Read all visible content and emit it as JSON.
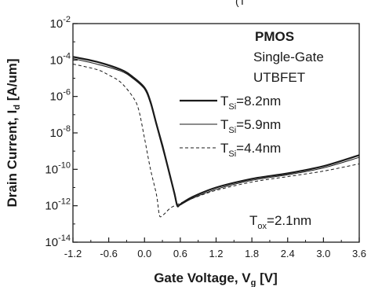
{
  "chart_data": {
    "type": "line",
    "title": "",
    "top_caption_fragment": "(T",
    "xlabel": "Gate Voltage, V",
    "xlabel_sub": "g",
    "xlabel_unit": " [V]",
    "ylabel": "Drain Current, I",
    "ylabel_sub": "d",
    "ylabel_unit": " [A/um]",
    "x_ticks": [
      "-1.2",
      "-0.6",
      "0.0",
      "0.6",
      "1.2",
      "1.8",
      "2.4",
      "3.0",
      "3.6"
    ],
    "y_ticks": [
      {
        "base": "10",
        "exp": "-2"
      },
      {
        "base": "10",
        "exp": "-4"
      },
      {
        "base": "10",
        "exp": "-6"
      },
      {
        "base": "10",
        "exp": "-8"
      },
      {
        "base": "10",
        "exp": "-10"
      },
      {
        "base": "10",
        "exp": "-12"
      },
      {
        "base": "10",
        "exp": "-14"
      }
    ],
    "xlim": [
      -1.2,
      3.6
    ],
    "ylim_log10": [
      -14,
      -2
    ],
    "y_scale": "log",
    "grid": false,
    "device": {
      "line1": "PMOS",
      "line2": "Single-Gate",
      "line3": "UTBFET"
    },
    "legend": {
      "placement": "middle-right",
      "symbol": "T",
      "sub": "Si"
    },
    "annotation": {
      "symbol": "T",
      "sub": "ox",
      "value": "=2.1nm"
    },
    "series": [
      {
        "name": "=8.2nm",
        "style": "solid-thick",
        "x": [
          -1.2,
          -0.8,
          -0.4,
          -0.2,
          0.0,
          0.1,
          0.2,
          0.3,
          0.4,
          0.5,
          0.55,
          0.6,
          0.8,
          1.2,
          1.8,
          2.4,
          3.0,
          3.6
        ],
        "y": [
          0.00015,
          8e-05,
          3e-05,
          1.2e-05,
          3e-06,
          5e-07,
          3e-08,
          2e-09,
          1e-10,
          5e-12,
          1e-12,
          1.2e-12,
          3e-12,
          1e-11,
          3e-11,
          6e-11,
          1.5e-10,
          6e-10
        ]
      },
      {
        "name": "=5.9nm",
        "style": "solid-thin",
        "x": [
          -1.2,
          -0.8,
          -0.4,
          -0.2,
          0.0,
          0.1,
          0.2,
          0.3,
          0.4,
          0.5,
          0.55,
          0.6,
          0.8,
          1.2,
          1.8,
          2.4,
          3.0,
          3.6
        ],
        "y": [
          0.00012,
          6e-05,
          2.5e-05,
          1e-05,
          2.5e-06,
          4e-07,
          2.5e-08,
          1.5e-09,
          1e-10,
          4e-12,
          1e-12,
          1.1e-12,
          2.5e-12,
          8e-12,
          2.5e-11,
          5e-11,
          1.2e-10,
          4.5e-10
        ]
      },
      {
        "name": "=4.4nm",
        "style": "dashed",
        "x": [
          -1.2,
          -0.8,
          -0.6,
          -0.4,
          -0.2,
          -0.1,
          0.0,
          0.1,
          0.2,
          0.25,
          0.3,
          0.35,
          0.4,
          0.5,
          0.8,
          1.2,
          1.8,
          2.4,
          3.0,
          3.6
        ],
        "y": [
          6e-05,
          3e-05,
          1.5e-05,
          6e-06,
          1e-06,
          2e-07,
          5e-09,
          1e-10,
          4e-12,
          3e-13,
          3e-13,
          4e-13,
          6e-13,
          1e-12,
          2.5e-12,
          7e-12,
          2e-11,
          4e-11,
          8e-11,
          2e-10
        ]
      }
    ]
  }
}
